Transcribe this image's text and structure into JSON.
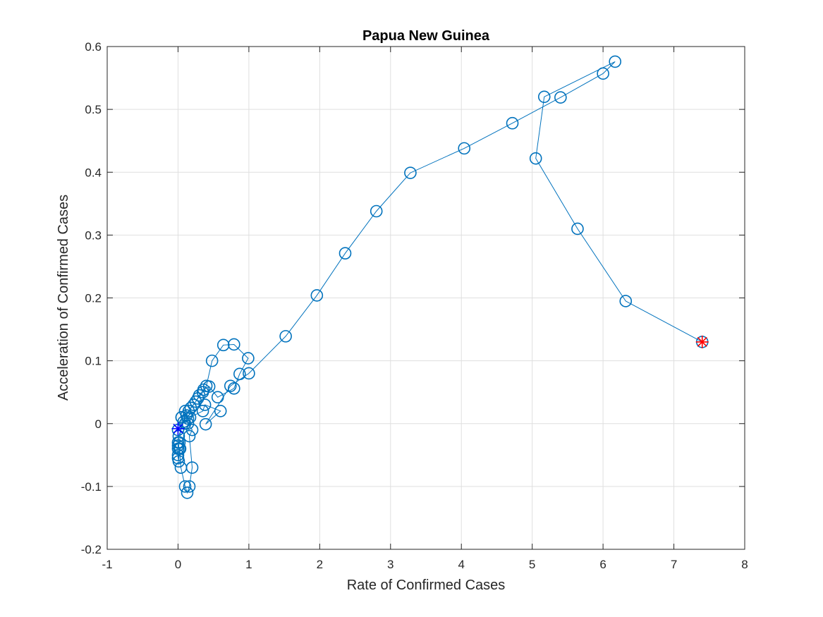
{
  "chart_data": {
    "type": "line",
    "title": "Papua New Guinea",
    "xlabel": "Rate of Confirmed Cases",
    "ylabel": "Acceleration of Confirmed Cases",
    "xlim": [
      -1,
      8
    ],
    "ylim": [
      -0.2,
      0.6
    ],
    "xticks": [
      -1,
      0,
      1,
      2,
      3,
      4,
      5,
      6,
      7,
      8
    ],
    "yticks": [
      -0.2,
      -0.1,
      0,
      0.1,
      0.2,
      0.3,
      0.4,
      0.5,
      0.6
    ],
    "xtick_labels": [
      "-1",
      "0",
      "1",
      "2",
      "3",
      "4",
      "5",
      "6",
      "7",
      "8"
    ],
    "ytick_labels": [
      "-0.2",
      "-0.1",
      "0",
      "0.1",
      "0.2",
      "0.3",
      "0.4",
      "0.5",
      "0.6"
    ],
    "grid": true,
    "series": [
      {
        "marker": "circle",
        "color": "#0072BD",
        "points": [
          [
            0.0,
            -0.01
          ],
          [
            0.0,
            -0.03
          ],
          [
            0.0,
            -0.05
          ],
          [
            0.01,
            -0.06
          ],
          [
            0.02,
            -0.04
          ],
          [
            0.04,
            -0.07
          ],
          [
            0.1,
            -0.1
          ],
          [
            0.13,
            -0.11
          ],
          [
            0.16,
            -0.1
          ],
          [
            0.2,
            -0.07
          ],
          [
            0.16,
            -0.02
          ],
          [
            0.2,
            -0.01
          ],
          [
            0.14,
            0.0
          ],
          [
            0.1,
            0.02
          ],
          [
            0.05,
            0.01
          ],
          [
            0.15,
            0.02
          ],
          [
            0.22,
            0.03
          ],
          [
            0.28,
            0.04
          ],
          [
            0.35,
            0.05
          ],
          [
            0.4,
            0.06
          ],
          [
            0.48,
            0.1
          ],
          [
            0.64,
            0.125
          ],
          [
            0.79,
            0.126
          ],
          [
            0.99,
            0.104
          ],
          [
            0.87,
            0.079
          ],
          [
            0.79,
            0.056
          ],
          [
            0.56,
            0.042
          ],
          [
            0.44,
            0.059
          ],
          [
            0.36,
            0.054
          ],
          [
            0.3,
            0.045
          ],
          [
            0.25,
            0.035
          ],
          [
            0.18,
            0.025
          ],
          [
            0.12,
            0.013
          ],
          [
            0.14,
            0.008
          ],
          [
            0.08,
            0.003
          ],
          [
            0.01,
            -0.02
          ],
          [
            0.0,
            -0.035
          ],
          [
            0.03,
            -0.04
          ],
          [
            0.0,
            -0.055
          ],
          [
            0.0,
            -0.04
          ],
          [
            0.02,
            -0.03
          ],
          [
            0.05,
            0.01
          ],
          [
            0.1,
            0.0
          ],
          [
            0.17,
            0.01
          ],
          [
            0.35,
            0.02
          ],
          [
            0.38,
            0.03
          ],
          [
            0.6,
            0.02
          ],
          [
            0.39,
            -0.001
          ],
          [
            0.74,
            0.06
          ],
          [
            1.0,
            0.08
          ],
          [
            1.52,
            0.139
          ],
          [
            1.96,
            0.204
          ],
          [
            2.36,
            0.271
          ],
          [
            2.8,
            0.338
          ],
          [
            3.28,
            0.399
          ],
          [
            4.04,
            0.438
          ],
          [
            4.72,
            0.478
          ],
          [
            5.4,
            0.519
          ],
          [
            6.0,
            0.557
          ],
          [
            6.17,
            0.576
          ],
          [
            5.17,
            0.52
          ],
          [
            5.05,
            0.422
          ],
          [
            5.64,
            0.31
          ],
          [
            6.32,
            0.195
          ],
          [
            7.4,
            0.13
          ]
        ]
      }
    ],
    "start_marker": {
      "x": 0.0,
      "y": -0.008,
      "marker": "asterisk",
      "color": "#0000FF"
    },
    "end_marker": {
      "x": 7.4,
      "y": 0.13,
      "marker": "asterisk",
      "color": "#FF0000"
    }
  }
}
